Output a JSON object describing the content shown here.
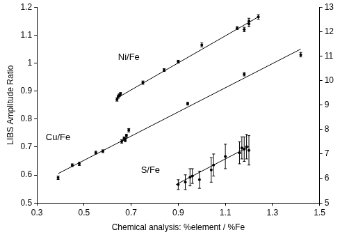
{
  "chart_data": {
    "type": "scatter",
    "x_label": "Chemical analysis: %element / %Fe",
    "y_label": "LIBS Amplitude Ratio",
    "xlim": [
      0.3,
      1.5
    ],
    "xticks": [
      0.3,
      0.5,
      0.7,
      0.9,
      1.1,
      1.3,
      1.5
    ],
    "ylim": [
      0.5,
      1.2
    ],
    "yticks": [
      0.5,
      0.6,
      0.7,
      0.8,
      0.9,
      1,
      1.1,
      1.2
    ],
    "y2lim": [
      5,
      13
    ],
    "y2ticks": [
      5,
      6,
      7,
      8,
      9,
      10,
      11,
      12,
      13
    ],
    "grid": false,
    "series": [
      {
        "name": "Ni/Fe",
        "color": "#000000",
        "marker": "circle",
        "x": [
          0.64,
          0.645,
          0.65,
          0.655,
          0.75,
          0.84,
          0.9,
          1.0,
          1.15,
          1.18,
          1.2,
          1.2,
          1.24
        ],
        "values": [
          0.87,
          0.88,
          0.885,
          0.89,
          0.93,
          0.975,
          1.005,
          1.065,
          1.125,
          1.12,
          1.14,
          1.15,
          1.165
        ],
        "errors": [
          0.006,
          0.006,
          0.005,
          0.005,
          0.006,
          0.005,
          0.005,
          0.007,
          0.005,
          0.008,
          0.01,
          0.01,
          0.008
        ],
        "trend_line": {
          "x": [
            0.64,
            1.24
          ],
          "values": [
            0.875,
            1.165
          ]
        }
      },
      {
        "name": "Cu/Fe",
        "color": "#000000",
        "marker": "circle",
        "x": [
          0.39,
          0.45,
          0.48,
          0.55,
          0.58,
          0.66,
          0.67,
          0.675,
          0.68,
          0.69,
          0.94,
          1.18,
          1.42
        ],
        "values": [
          0.59,
          0.635,
          0.64,
          0.68,
          0.685,
          0.72,
          0.73,
          0.725,
          0.74,
          0.76,
          0.855,
          0.96,
          1.03
        ],
        "errors": [
          0.006,
          0.005,
          0.006,
          0.005,
          0.005,
          0.006,
          0.006,
          0.006,
          0.006,
          0.006,
          0.005,
          0.006,
          0.008
        ],
        "trend_line": {
          "x": [
            0.39,
            1.42
          ],
          "values": [
            0.605,
            1.05
          ]
        }
      },
      {
        "name": "S/Fe",
        "color": "#000000",
        "marker": "circle",
        "axis": "y2",
        "x": [
          0.9,
          0.93,
          0.95,
          0.96,
          0.99,
          1.04,
          1.05,
          1.1,
          1.16,
          1.17,
          1.18,
          1.19,
          1.2
        ],
        "values": [
          5.75,
          5.85,
          6.05,
          6.1,
          5.95,
          6.35,
          6.55,
          6.9,
          7.05,
          7.25,
          7.2,
          7.3,
          7.15
        ],
        "errors": [
          0.2,
          0.3,
          0.35,
          0.3,
          0.35,
          0.5,
          0.45,
          0.5,
          0.45,
          0.45,
          0.5,
          0.5,
          0.6
        ],
        "trend_line": {
          "x": [
            0.89,
            1.2
          ],
          "values": [
            5.75,
            7.3
          ]
        }
      }
    ]
  }
}
